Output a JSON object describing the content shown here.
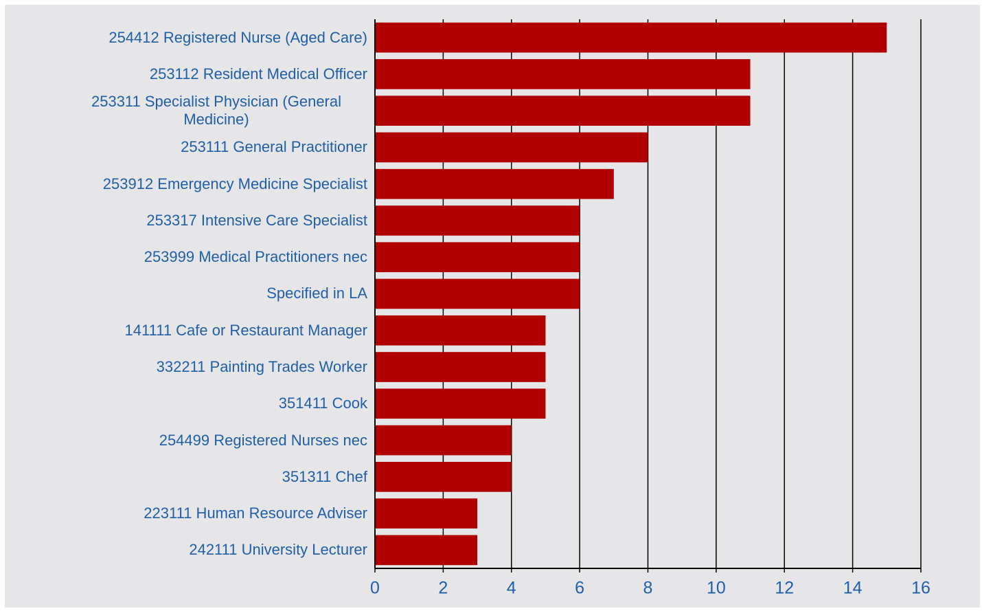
{
  "chart_data": {
    "type": "barh",
    "categories": [
      "254412 Registered Nurse (Aged Care)",
      "253112 Resident Medical Officer",
      "253311 Specialist Physician (General Medicine)",
      "253111 General Practitioner",
      "253912 Emergency Medicine Specialist",
      "253317 Intensive Care Specialist",
      "253999 Medical Practitioners nec",
      "Specified in LA",
      "141111 Cafe or Restaurant Manager",
      "332211 Painting Trades Worker",
      "351411 Cook",
      "254499 Registered Nurses nec",
      "351311 Chef",
      "223111 Human Resource Adviser",
      "242111 University Lecturer"
    ],
    "values": [
      15,
      11,
      11,
      8,
      7,
      6,
      6,
      6,
      5,
      5,
      5,
      4,
      4,
      3,
      3
    ],
    "color": "#b00000",
    "xlim": [
      0,
      16
    ],
    "xticks": [
      0,
      2,
      4,
      6,
      8,
      10,
      12,
      14,
      16
    ],
    "grid": true
  }
}
